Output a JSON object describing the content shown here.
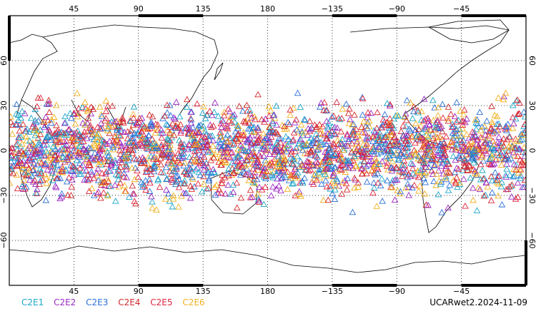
{
  "map": {
    "lon_ticks": [
      "45",
      "90",
      "135",
      "180",
      "−135",
      "−90",
      "−45"
    ],
    "lat_ticks": [
      "60",
      "30",
      "0",
      "−30",
      "−60"
    ],
    "lon_values": [
      45,
      90,
      135,
      180,
      225,
      270,
      315
    ],
    "lat_values": [
      60,
      30,
      0,
      -30,
      -60
    ],
    "lon_range": [
      0,
      360
    ],
    "lat_range": [
      -90,
      90
    ],
    "lat_coverage": [
      -45,
      45
    ],
    "grid": "dotted",
    "marker": "open-triangle",
    "background": "#ffffff",
    "coastline_color": "#000000"
  },
  "legend": {
    "items": [
      {
        "label": "C2E1",
        "color": "#1aa6c8"
      },
      {
        "label": "C2E2",
        "color": "#9b27c2"
      },
      {
        "label": "C2E3",
        "color": "#2a6fd6"
      },
      {
        "label": "C2E4",
        "color": "#d0282a"
      },
      {
        "label": "C2E5",
        "color": "#e0243c"
      },
      {
        "label": "C2E6",
        "color": "#f2b01e"
      }
    ]
  },
  "footer": {
    "stamp": "UCARwet2.2024-11-09"
  }
}
